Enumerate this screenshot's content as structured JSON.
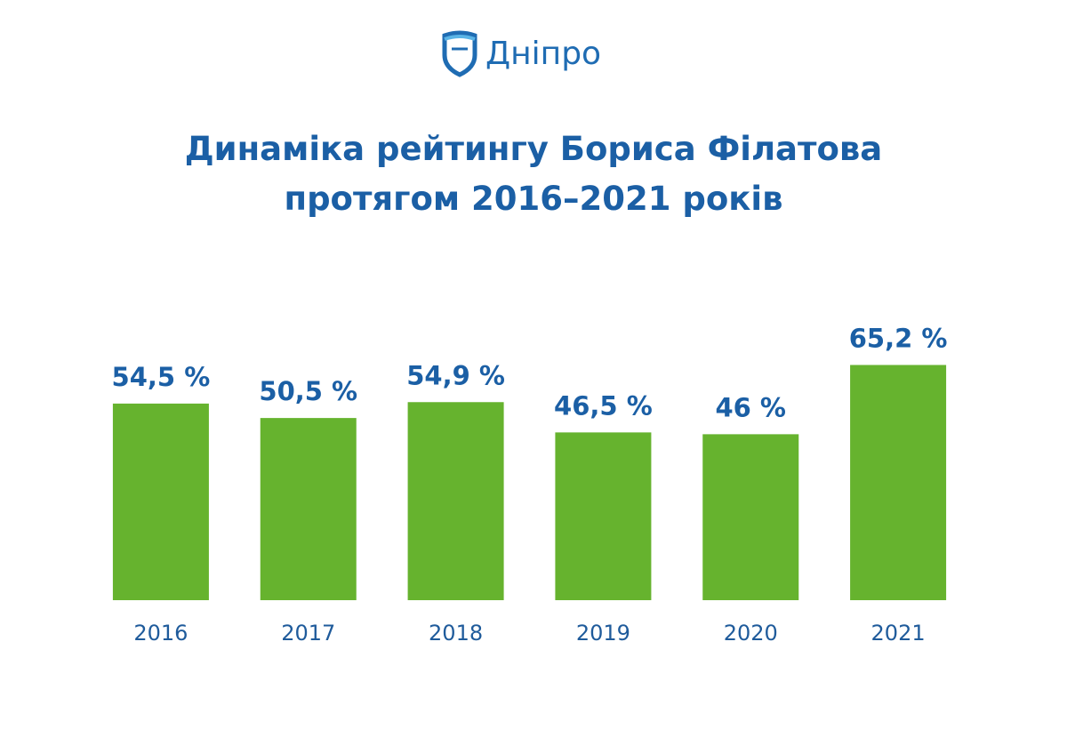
{
  "logo": "Дніпро",
  "chart_data": {
    "type": "bar",
    "title": "Динаміка рейтингу Бориса Філатова\nпротягом 2016–2021 років",
    "categories": [
      "2016",
      "2017",
      "2018",
      "2019",
      "2020",
      "2021"
    ],
    "values": [
      54.5,
      50.5,
      54.9,
      46.5,
      46,
      65.2
    ],
    "value_labels": [
      "54,5 %",
      "50,5 %",
      "54,9 %",
      "46,5 %",
      "46 %",
      "65,2 %"
    ],
    "color": "#66b32e",
    "ylim": [
      0,
      70
    ]
  }
}
